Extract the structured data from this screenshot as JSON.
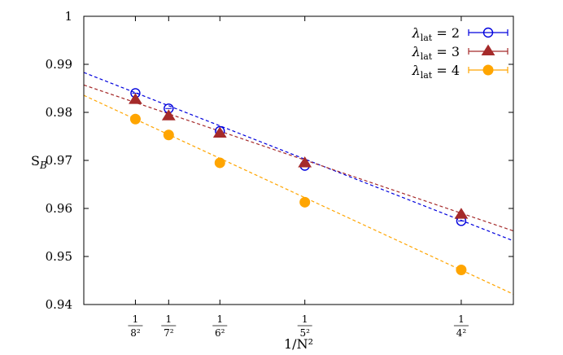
{
  "chart_data": {
    "type": "scatter",
    "title": "",
    "xlabel": "1/N²",
    "ylabel": "S_B",
    "xlim": [
      0.0082,
      0.07
    ],
    "ylim": [
      0.94,
      1.0
    ],
    "x_tick_labels": [
      {
        "x": 0.015625,
        "num": "1",
        "den": "8²"
      },
      {
        "x": 0.020408,
        "num": "1",
        "den": "7²"
      },
      {
        "x": 0.027778,
        "num": "1",
        "den": "6²"
      },
      {
        "x": 0.04,
        "num": "1",
        "den": "5²"
      },
      {
        "x": 0.0625,
        "num": "1",
        "den": "4²"
      }
    ],
    "y_ticks": [
      0.94,
      0.95,
      0.96,
      0.97,
      0.98,
      0.99,
      1.0
    ],
    "y_tick_labels": [
      "0.94",
      "0.95",
      "0.96",
      "0.97",
      "0.98",
      "0.99",
      "1"
    ],
    "grid": false,
    "legend_position": "top-right",
    "series": [
      {
        "name": "λ_lat = 2",
        "legend_main": "λ",
        "legend_sub": "lat",
        "legend_rest": " = 2",
        "color": "#0000dd",
        "marker": "open-circle",
        "x": [
          0.015625,
          0.020408,
          0.027778,
          0.04,
          0.0625
        ],
        "y": [
          0.984,
          0.9808,
          0.9761,
          0.9689,
          0.9574
        ],
        "fit": {
          "slope": -0.567,
          "intercept": 0.99295
        }
      },
      {
        "name": "λ_lat = 3",
        "legend_main": "λ",
        "legend_sub": "lat",
        "legend_rest": " = 3",
        "color": "#a52a2a",
        "marker": "filled-triangle",
        "x": [
          0.015625,
          0.020408,
          0.027778,
          0.04,
          0.0625
        ],
        "y": [
          0.9826,
          0.9792,
          0.9756,
          0.9694,
          0.9587
        ],
        "fit": {
          "slope": -0.4915,
          "intercept": 0.98973
        }
      },
      {
        "name": "λ_lat = 4",
        "legend_main": "λ",
        "legend_sub": "lat",
        "legend_rest": " = 4",
        "color": "#ffa500",
        "marker": "filled-circle",
        "x": [
          0.015625,
          0.020408,
          0.027778,
          0.04,
          0.0625
        ],
        "y": [
          0.9786,
          0.9753,
          0.9695,
          0.9613,
          0.9472
        ],
        "fit": {
          "slope": -0.6698,
          "intercept": 0.98904
        }
      }
    ]
  }
}
